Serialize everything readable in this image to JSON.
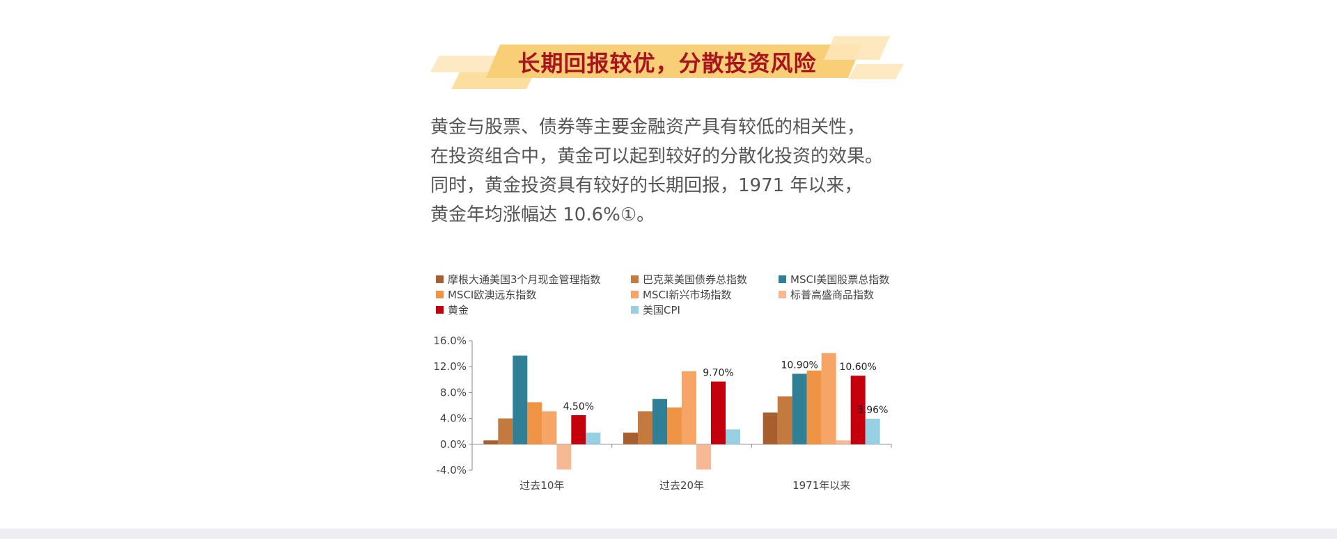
{
  "banner": {
    "title": "长期回报较优，分散投资风险"
  },
  "intro": {
    "lines": [
      "黄金与股票、债券等主要金融资产具有较低的相关性，",
      "在投资组合中，黄金可以起到较好的分散化投资的效果。",
      "同时，黄金投资具有较好的长期回报，1971 年以来，",
      "黄金年均涨幅达 10.6%①。"
    ]
  },
  "colors": {
    "title_red": "#a8131d",
    "banner_gold": "#f6c96a",
    "text_gray": "#555555",
    "background": "#ffffff",
    "footer": "#eeeef2"
  },
  "chart_data": {
    "type": "bar",
    "categories": [
      "过去10年",
      "过去20年",
      "1971年以来"
    ],
    "series": [
      {
        "name": "摩根大通美国3个月现金管理指数",
        "color": "#a85f2e",
        "values": [
          0.6,
          1.8,
          4.9
        ]
      },
      {
        "name": "巴克莱美国债券总指数",
        "color": "#c47a3e",
        "values": [
          4.0,
          5.1,
          7.4
        ]
      },
      {
        "name": "MSCI美国股票总指数",
        "color": "#2f7f97",
        "values": [
          13.7,
          7.0,
          10.9
        ]
      },
      {
        "name": "MSCI欧澳远东指数",
        "color": "#ef9445",
        "values": [
          6.5,
          5.7,
          11.4
        ]
      },
      {
        "name": "MSCI新兴市场指数",
        "color": "#f6a567",
        "values": [
          5.1,
          11.3,
          14.1
        ]
      },
      {
        "name": "标普高盛商品指数",
        "color": "#f7b894",
        "values": [
          -3.9,
          -3.9,
          0.6
        ]
      },
      {
        "name": "黄金",
        "color": "#c4000d",
        "values": [
          4.5,
          9.7,
          10.6
        ]
      },
      {
        "name": "美国CPI",
        "color": "#96d0e2",
        "values": [
          1.8,
          2.3,
          3.96
        ]
      }
    ],
    "ylim": [
      -4,
      16
    ],
    "yticks": [
      "-4.0%",
      "0.0%",
      "4.0%",
      "8.0%",
      "12.0%",
      "16.0%"
    ],
    "ytick_values": [
      -4,
      0,
      4,
      8,
      12,
      16
    ],
    "legend_position": "top",
    "annotations": [
      {
        "category": 0,
        "series": 6,
        "text": "4.50%"
      },
      {
        "category": 1,
        "series": 6,
        "text": "9.70%"
      },
      {
        "category": 2,
        "series": 2,
        "text": "10.90%"
      },
      {
        "category": 2,
        "series": 6,
        "text": "10.60%"
      },
      {
        "category": 2,
        "series": 7,
        "text": "3.96%"
      }
    ]
  }
}
